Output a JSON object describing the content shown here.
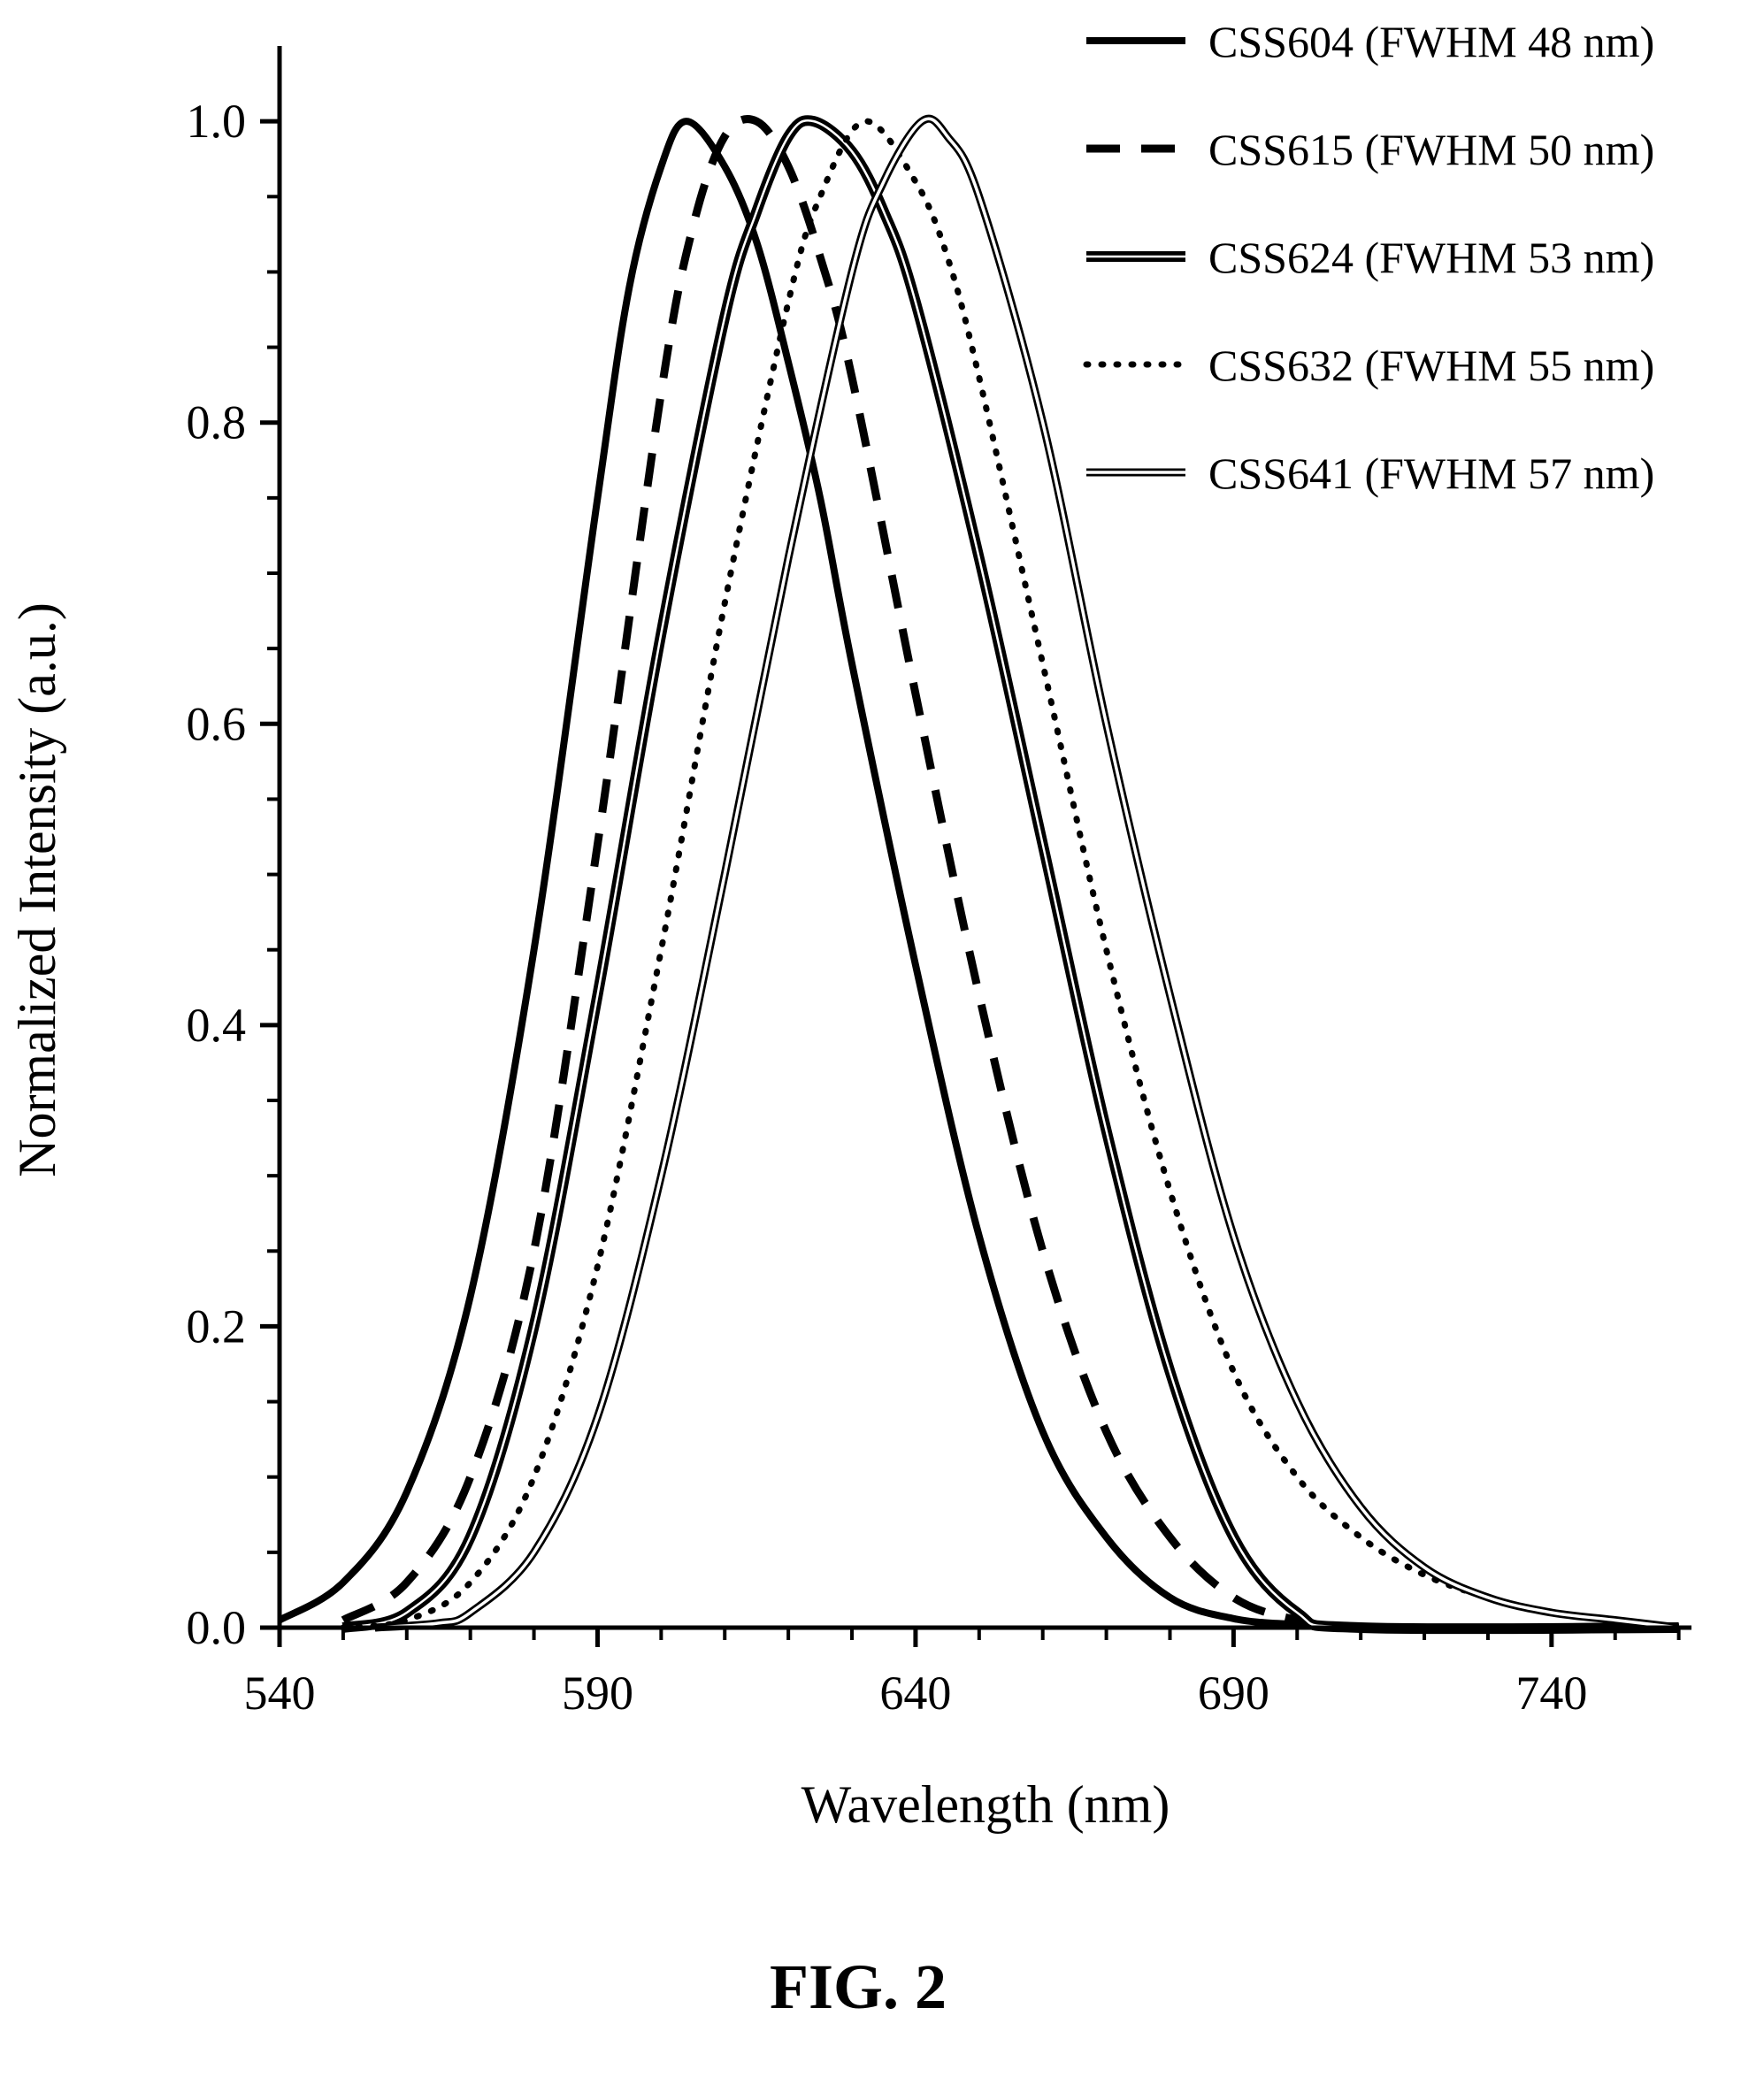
{
  "chart_data": {
    "type": "line",
    "xlabel": "Wavelength (nm)",
    "ylabel": "Normalized Intensity (a.u.)",
    "xlim": [
      540,
      762
    ],
    "ylim": [
      0,
      1.05
    ],
    "xticks": [
      "540",
      "590",
      "640",
      "690",
      "740"
    ],
    "yticks": [
      "0.0",
      "0.2",
      "0.4",
      "0.6",
      "0.8",
      "1.0"
    ],
    "grid": false,
    "legend_position": "top-right",
    "series": [
      {
        "name": "CSS604 (FWHM 48 nm)",
        "style": "solid",
        "color": "#000000",
        "x": [
          540,
          550,
          560,
          570,
          580,
          590,
          595,
          600,
          604,
          610,
          615,
          620,
          625,
          630,
          640,
          650,
          660,
          670,
          680,
          690,
          700,
          710,
          760
        ],
        "y": [
          0.005,
          0.03,
          0.09,
          0.22,
          0.45,
          0.75,
          0.89,
          0.97,
          1.0,
          0.97,
          0.92,
          0.84,
          0.75,
          0.64,
          0.44,
          0.26,
          0.13,
          0.06,
          0.02,
          0.006,
          0.002,
          0.0,
          0.0
        ]
      },
      {
        "name": "CSS615 (FWHM 50 nm)",
        "style": "dashed",
        "color": "#000000",
        "x": [
          550,
          560,
          570,
          580,
          590,
          600,
          605,
          610,
          615,
          620,
          625,
          630,
          640,
          650,
          660,
          670,
          680,
          690,
          700,
          710,
          760
        ],
        "y": [
          0.005,
          0.03,
          0.1,
          0.25,
          0.52,
          0.82,
          0.93,
          0.99,
          1.0,
          0.97,
          0.91,
          0.83,
          0.62,
          0.42,
          0.25,
          0.13,
          0.06,
          0.02,
          0.005,
          0.0,
          0.0
        ]
      },
      {
        "name": "CSS624 (FWHM 53 nm)",
        "style": "thick-double",
        "color": "#000000",
        "x": [
          550,
          560,
          570,
          580,
          590,
          600,
          610,
          615,
          620,
          624,
          630,
          635,
          640,
          650,
          660,
          670,
          680,
          690,
          700,
          710,
          760
        ],
        "y": [
          0.0,
          0.01,
          0.06,
          0.2,
          0.42,
          0.66,
          0.87,
          0.94,
          0.99,
          1.0,
          0.98,
          0.94,
          0.88,
          0.71,
          0.52,
          0.33,
          0.17,
          0.06,
          0.01,
          0.0,
          0.0
        ]
      },
      {
        "name": "CSS632 (FWHM 55 nm)",
        "style": "dotted",
        "color": "#000000",
        "x": [
          550,
          560,
          570,
          580,
          590,
          600,
          610,
          620,
          625,
          632,
          640,
          645,
          650,
          660,
          670,
          680,
          690,
          700,
          710,
          720,
          730,
          740,
          750,
          760
        ],
        "y": [
          0.0,
          0.005,
          0.03,
          0.1,
          0.24,
          0.45,
          0.68,
          0.88,
          0.95,
          1.0,
          0.96,
          0.91,
          0.83,
          0.64,
          0.45,
          0.29,
          0.17,
          0.1,
          0.06,
          0.035,
          0.02,
          0.01,
          0.005,
          0.0
        ]
      },
      {
        "name": "CSS641 (FWHM 57 nm)",
        "style": "double",
        "color": "#000000",
        "x": [
          555,
          565,
          570,
          580,
          590,
          600,
          610,
          620,
          630,
          635,
          641,
          645,
          650,
          660,
          670,
          680,
          690,
          700,
          710,
          720,
          730,
          740,
          750,
          760
        ],
        "y": [
          0.0,
          0.003,
          0.01,
          0.05,
          0.14,
          0.3,
          0.5,
          0.71,
          0.9,
          0.96,
          1.0,
          0.99,
          0.95,
          0.8,
          0.6,
          0.42,
          0.26,
          0.15,
          0.08,
          0.04,
          0.02,
          0.01,
          0.005,
          0.0
        ]
      }
    ]
  },
  "figure_label": "FIG. 2"
}
